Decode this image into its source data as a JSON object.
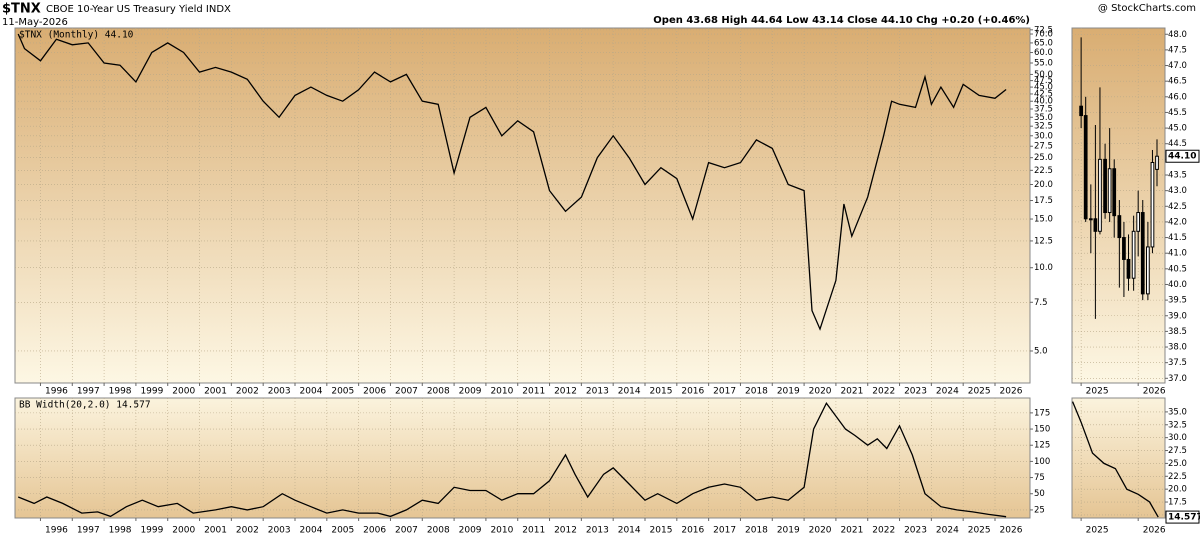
{
  "header": {
    "title": "$TNX",
    "subtitle": "CBOE 10-Year US Treasury Yield INDX",
    "date": "11-May-2026",
    "source": "@ StockCharts.com",
    "quote": "Open 43.68  High 44.64  Low 43.14  Close 44.10  Chg +0.20 (+0.46%)"
  },
  "chart_data": [
    {
      "type": "line",
      "label": "$TNX (Monthly) 44.10",
      "color": "#000000",
      "log": true,
      "grid": true,
      "x": [
        1995.3,
        1995.5,
        1996.0,
        1996.5,
        1997.0,
        1997.5,
        1998.0,
        1998.5,
        1999.0,
        1999.5,
        2000.0,
        2000.5,
        2001.0,
        2001.5,
        2002.0,
        2002.5,
        2003.0,
        2003.5,
        2004.0,
        2004.5,
        2005.0,
        2005.5,
        2006.0,
        2006.5,
        2007.0,
        2007.5,
        2008.0,
        2008.5,
        2009.0,
        2009.5,
        2010.0,
        2010.5,
        2011.0,
        2011.5,
        2012.0,
        2012.5,
        2013.0,
        2013.5,
        2014.0,
        2014.5,
        2015.0,
        2015.5,
        2016.0,
        2016.5,
        2017.0,
        2017.5,
        2018.0,
        2018.5,
        2019.0,
        2019.5,
        2020.0,
        2020.25,
        2020.5,
        2021.0,
        2021.25,
        2021.5,
        2022.0,
        2022.5,
        2022.75,
        2023.0,
        2023.5,
        2023.8,
        2024.0,
        2024.3,
        2024.7,
        2025.0,
        2025.5,
        2026.0,
        2026.35
      ],
      "values": [
        70,
        62,
        56,
        67,
        64,
        65,
        55,
        54,
        47,
        60,
        65,
        60,
        51,
        53,
        51,
        48,
        40,
        35,
        42,
        45,
        42,
        40,
        44,
        51,
        47,
        50,
        40,
        39,
        22,
        35,
        38,
        30,
        34,
        31,
        19,
        16,
        18,
        25,
        30,
        25,
        20,
        23,
        21,
        15,
        24,
        23,
        24,
        29,
        27,
        20,
        19,
        7,
        6,
        9,
        17,
        13,
        18,
        30,
        40,
        39,
        38,
        49,
        39,
        45,
        38,
        46,
        42,
        41,
        44.1
      ],
      "xlim": [
        1995.2,
        2027.1
      ],
      "xticks": [
        1996,
        1997,
        1998,
        1999,
        2000,
        2001,
        2002,
        2003,
        2004,
        2005,
        2006,
        2007,
        2008,
        2009,
        2010,
        2011,
        2012,
        2013,
        2014,
        2015,
        2016,
        2017,
        2018,
        2019,
        2020,
        2021,
        2022,
        2023,
        2024,
        2025,
        2026
      ],
      "ylim": [
        3.83,
        73.6
      ],
      "yticks": [
        {
          "value": 5,
          "label": "5.0"
        },
        {
          "value": 7.5,
          "label": "7.5"
        },
        {
          "value": 10,
          "label": "10.0"
        },
        {
          "value": 12.5,
          "label": "12.5"
        },
        {
          "value": 15,
          "label": "15.0"
        },
        {
          "value": 17.5,
          "label": "17.5"
        },
        {
          "value": 20,
          "label": "20.0"
        },
        {
          "value": 22.5,
          "label": "22.5"
        },
        {
          "value": 25,
          "label": "25.0"
        },
        {
          "value": 27.5,
          "label": "27.5"
        },
        {
          "value": 30,
          "label": "30.0"
        },
        {
          "value": 32.5,
          "label": "32.5"
        },
        {
          "value": 35,
          "label": "35.0"
        },
        {
          "value": 37.5,
          "label": "37.5"
        },
        {
          "value": 40,
          "label": "40.0"
        },
        {
          "value": 42.5,
          "label": "42.5"
        },
        {
          "value": 45,
          "label": "45.0"
        },
        {
          "value": 47.5,
          "label": "47.5"
        },
        {
          "value": 50,
          "label": "50.0"
        },
        {
          "value": 55,
          "label": "55.0"
        },
        {
          "value": 60,
          "label": "60.0"
        },
        {
          "value": 65,
          "label": "65.0"
        },
        {
          "value": 70,
          "label": "70.0"
        },
        {
          "value": 72.5,
          "label": "72.5"
        }
      ]
    },
    {
      "type": "line",
      "label": "BB Width(20,2.0) 14.577",
      "color": "#000000",
      "log": false,
      "grid": true,
      "x": [
        1995.3,
        1995.8,
        1996.2,
        1996.7,
        1997.3,
        1997.8,
        1998.2,
        1998.7,
        1999.2,
        1999.7,
        2000.3,
        2000.8,
        2001.5,
        2002.0,
        2002.5,
        2003.0,
        2003.6,
        2004.0,
        2004.5,
        2005.0,
        2005.5,
        2006.0,
        2006.6,
        2007.0,
        2007.5,
        2008.0,
        2008.5,
        2009.0,
        2009.5,
        2010.0,
        2010.5,
        2011.0,
        2011.5,
        2012.0,
        2012.5,
        2012.8,
        2013.2,
        2013.7,
        2014.0,
        2014.5,
        2015.0,
        2015.4,
        2016.0,
        2016.5,
        2017.0,
        2017.5,
        2018.0,
        2018.5,
        2019.0,
        2019.5,
        2020.0,
        2020.3,
        2020.7,
        2021.0,
        2021.3,
        2021.6,
        2022.0,
        2022.3,
        2022.6,
        2023.0,
        2023.4,
        2023.8,
        2024.3,
        2024.8,
        2025.3,
        2025.8,
        2026.35
      ],
      "values": [
        45,
        35,
        45,
        35,
        20,
        22,
        15,
        30,
        40,
        30,
        35,
        20,
        25,
        30,
        25,
        30,
        50,
        40,
        30,
        20,
        25,
        20,
        20,
        15,
        25,
        40,
        35,
        60,
        55,
        55,
        40,
        50,
        50,
        70,
        110,
        80,
        45,
        80,
        90,
        65,
        40,
        50,
        35,
        50,
        60,
        65,
        60,
        40,
        45,
        40,
        60,
        150,
        190,
        170,
        150,
        140,
        125,
        135,
        120,
        155,
        110,
        50,
        30,
        25,
        22,
        18,
        14.577
      ],
      "xlim": [
        1995.2,
        2027.1
      ],
      "xticks": [
        1996,
        1997,
        1998,
        1999,
        2000,
        2001,
        2002,
        2003,
        2004,
        2005,
        2006,
        2007,
        2008,
        2009,
        2010,
        2011,
        2012,
        2013,
        2014,
        2015,
        2016,
        2017,
        2018,
        2019,
        2020,
        2021,
        2022,
        2023,
        2024,
        2025,
        2026
      ],
      "ylim": [
        12.5,
        198
      ],
      "yticks": [
        25,
        50,
        75,
        100,
        125,
        150,
        175
      ]
    },
    {
      "type": "candlestick",
      "last_label": "44.10",
      "up_color": "#ffffff",
      "down_color": "#000000",
      "grid": true,
      "x": [
        2025.0,
        2025.08,
        2025.17,
        2025.25,
        2025.33,
        2025.42,
        2025.5,
        2025.58,
        2025.67,
        2025.75,
        2025.83,
        2025.92,
        2026.0,
        2026.08,
        2026.17,
        2026.25,
        2026.33
      ],
      "open": [
        45.7,
        45.4,
        42.1,
        42.1,
        41.7,
        44.0,
        42.3,
        43.7,
        42.2,
        41.5,
        40.8,
        40.2,
        41.7,
        42.3,
        39.7,
        41.2,
        43.68
      ],
      "high": [
        47.9,
        46.0,
        43.2,
        45.1,
        46.3,
        44.5,
        45.0,
        44.0,
        42.7,
        42.0,
        41.6,
        42.2,
        43.0,
        42.7,
        42.0,
        44.3,
        44.64
      ],
      "low": [
        45.0,
        42.0,
        41.0,
        38.9,
        41.6,
        42.1,
        42.0,
        41.5,
        39.9,
        39.6,
        39.8,
        39.8,
        40.9,
        39.5,
        39.5,
        41.0,
        43.14
      ],
      "close": [
        45.4,
        42.1,
        42.1,
        41.7,
        44.0,
        42.3,
        43.7,
        42.2,
        41.5,
        40.8,
        40.2,
        41.7,
        42.3,
        39.7,
        41.2,
        43.9,
        44.1
      ],
      "xlim": [
        2024.84,
        2026.47
      ],
      "xticks": [
        2025,
        2026
      ],
      "ylim": [
        36.85,
        48.2
      ],
      "yticks": [
        {
          "value": 37,
          "label": "37.0"
        },
        {
          "value": 37.5,
          "label": "37.5"
        },
        {
          "value": 38,
          "label": "38.0"
        },
        {
          "value": 38.5,
          "label": "38.5"
        },
        {
          "value": 39,
          "label": "39.0"
        },
        {
          "value": 39.5,
          "label": "39.5"
        },
        {
          "value": 40,
          "label": "40.0"
        },
        {
          "value": 40.5,
          "label": "40.5"
        },
        {
          "value": 41,
          "label": "41.0"
        },
        {
          "value": 41.5,
          "label": "41.5"
        },
        {
          "value": 42,
          "label": "42.0"
        },
        {
          "value": 42.5,
          "label": "42.5"
        },
        {
          "value": 43,
          "label": "43.0"
        },
        {
          "value": 43.5,
          "label": "43.5"
        },
        {
          "value": 44,
          "label": "44.0"
        },
        {
          "value": 44.5,
          "label": "44.5"
        },
        {
          "value": 45,
          "label": "45.0"
        },
        {
          "value": 45.5,
          "label": "45.5"
        },
        {
          "value": 46,
          "label": "46.0"
        },
        {
          "value": 46.5,
          "label": "46.5"
        },
        {
          "value": 47,
          "label": "47.0"
        },
        {
          "value": 47.5,
          "label": "47.5"
        },
        {
          "value": 48,
          "label": "48.0"
        }
      ]
    },
    {
      "type": "line",
      "last_label": "14.577",
      "color": "#000000",
      "log": false,
      "grid": true,
      "x": [
        2024.85,
        2025.0,
        2025.2,
        2025.4,
        2025.6,
        2025.8,
        2026.0,
        2026.2,
        2026.35
      ],
      "values": [
        37,
        33,
        27,
        25,
        24,
        20,
        19,
        17.5,
        14.577
      ],
      "xlim": [
        2024.84,
        2026.47
      ],
      "xticks": [
        2025,
        2026
      ],
      "ylim": [
        14.4,
        37.7
      ],
      "yticks": [
        {
          "value": 15,
          "label": "15.0"
        },
        {
          "value": 17.5,
          "label": "17.5"
        },
        {
          "value": 20,
          "label": "20.0"
        },
        {
          "value": 22.5,
          "label": "22.5"
        },
        {
          "value": 25,
          "label": "25.0"
        },
        {
          "value": 27.5,
          "label": "27.5"
        },
        {
          "value": 30,
          "label": "30.0"
        },
        {
          "value": 32.5,
          "label": "32.5"
        },
        {
          "value": 35,
          "label": "35.0"
        }
      ]
    }
  ]
}
